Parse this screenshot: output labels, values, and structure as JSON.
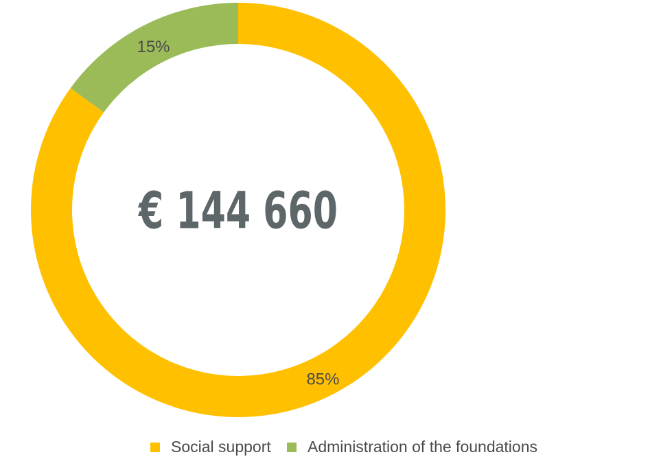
{
  "chart_data": {
    "type": "donut",
    "center_label": "€ 144 660",
    "categories": [
      "Social support",
      "Administration of the foundations"
    ],
    "values": [
      85,
      15
    ],
    "value_labels": [
      "85%",
      "15%"
    ],
    "colors": [
      "#FFC000",
      "#9BBB59"
    ],
    "legend": "bottom"
  }
}
